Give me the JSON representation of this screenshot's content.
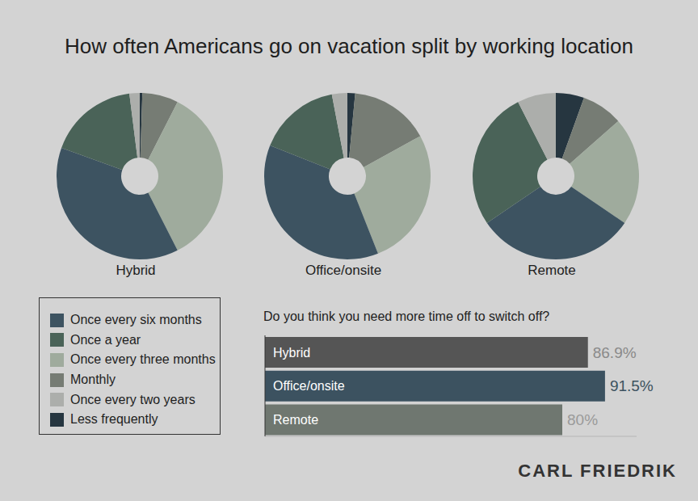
{
  "title": "How often Americans go on vacation split by working location",
  "footer": "CARL FRIEDRIK",
  "chart_data": [
    {
      "type": "pie",
      "title": "Hybrid",
      "legend": "bottom left",
      "categories": [
        "Less frequently",
        "Monthly",
        "Once every three months",
        "Once every six months",
        "Once a year",
        "Once every two years"
      ],
      "values": [
        0.5,
        7,
        35,
        38,
        17.5,
        2
      ],
      "colors": [
        "#263640",
        "#767c74",
        "#9fab9d",
        "#3d5361",
        "#4a6358",
        "#acaeab"
      ]
    },
    {
      "type": "pie",
      "title": "Office/onsite",
      "categories": [
        "Less frequently",
        "Monthly",
        "Once every three months",
        "Once every six months",
        "Once a year",
        "Once every two years"
      ],
      "values": [
        1.5,
        15.5,
        27,
        37,
        16,
        3
      ],
      "colors": [
        "#263640",
        "#767c74",
        "#9fab9d",
        "#3d5361",
        "#4a6358",
        "#acaeab"
      ]
    },
    {
      "type": "pie",
      "title": "Remote",
      "categories": [
        "Less frequently",
        "Monthly",
        "Once every three months",
        "Once every six months",
        "Once a year",
        "Once every two years"
      ],
      "values": [
        5.5,
        8,
        21,
        31,
        27,
        7.5
      ],
      "colors": [
        "#263640",
        "#767c74",
        "#9fab9d",
        "#3d5361",
        "#4a6358",
        "#acaeab"
      ]
    },
    {
      "type": "bar",
      "title": "Do you think you need more time off to switch off?",
      "orientation": "horizontal",
      "categories": [
        "Hybrid",
        "Office/onsite",
        "Remote"
      ],
      "values": [
        86.9,
        91.5,
        80
      ],
      "value_labels": [
        "86.9%",
        "91.5%",
        "80%"
      ],
      "data_labels": true,
      "colors": [
        "#555555",
        "#3c5260",
        "#6f7770"
      ],
      "xlim": [
        0,
        100
      ],
      "tick_labels": false
    }
  ]
}
